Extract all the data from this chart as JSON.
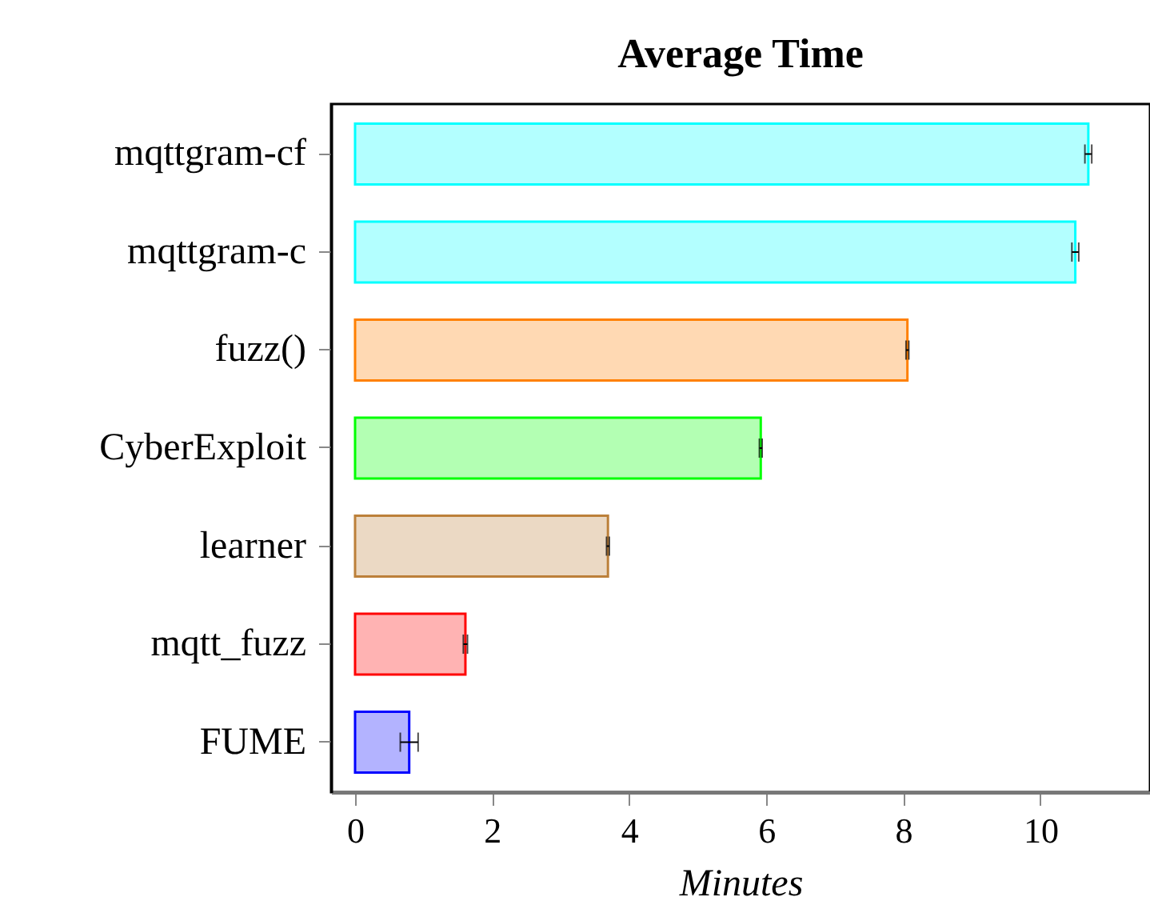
{
  "chart_data": {
    "type": "bar",
    "orientation": "horizontal",
    "title": "Average Time",
    "xlabel": "Minutes",
    "categories": [
      "mqttgram-cf",
      "mqttgram-c",
      "fuzz()",
      "CyberExploit",
      "learner",
      "mqtt_fuzz",
      "FUME"
    ],
    "values": [
      10.7,
      10.51,
      8.06,
      5.92,
      3.69,
      1.61,
      0.79
    ],
    "errors": [
      0.05,
      0.05,
      0.02,
      0.02,
      0.02,
      0.03,
      0.13
    ],
    "colors": [
      "#b3ffff",
      "#b3ffff",
      "#ffd9b3",
      "#b3ffb3",
      "#ebd9c4",
      "#ffb3b3",
      "#b3b3ff"
    ],
    "xlim": [
      -0.35,
      11.6
    ],
    "xticks": [
      0,
      2,
      4,
      6,
      8,
      10
    ],
    "grid": false
  }
}
